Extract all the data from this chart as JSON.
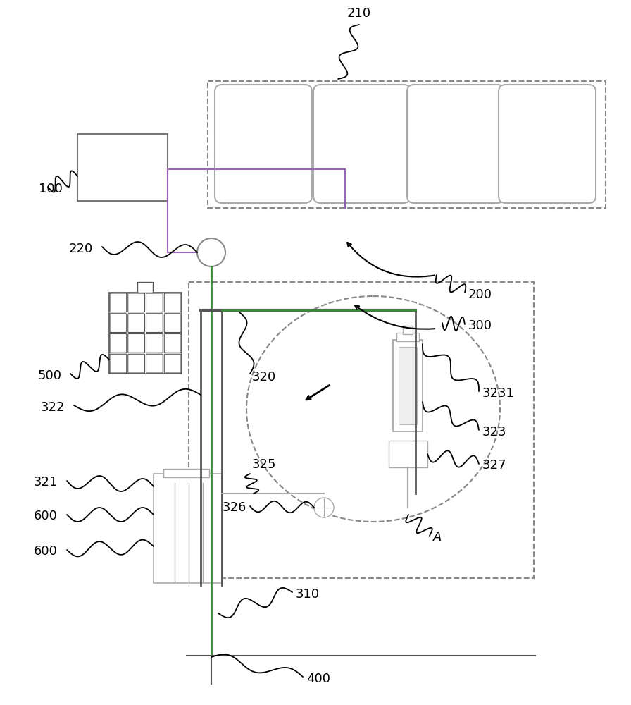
{
  "bg": "#ffffff",
  "blk": "#000000",
  "gray": "#888888",
  "dgray": "#555555",
  "lgray": "#aaaaaa",
  "green": "#3a8a3a",
  "purple": "#9966bb",
  "lfs": 13
}
